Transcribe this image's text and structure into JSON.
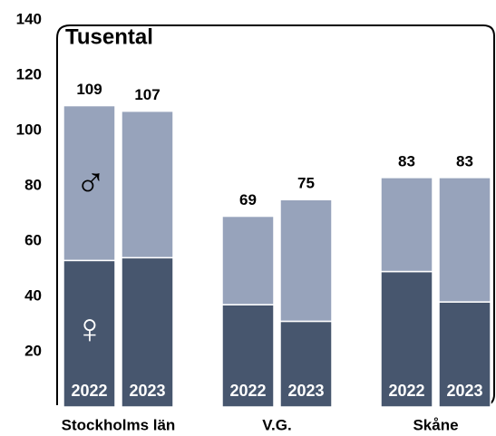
{
  "chart_data": {
    "type": "bar",
    "stacked": true,
    "title": "Tusental",
    "groups": [
      "Stockholms län",
      "V.G.",
      "Skåne"
    ],
    "categories": [
      "2022",
      "2023",
      "2022",
      "2023",
      "2022",
      "2023"
    ],
    "series": [
      {
        "name": "♀",
        "color": "#47566e",
        "values": [
          53,
          54,
          37,
          31,
          49,
          38
        ]
      },
      {
        "name": "♂",
        "color": "#97a3bb",
        "values": [
          56,
          53,
          32,
          44,
          34,
          45
        ]
      }
    ],
    "totals": [
      109,
      107,
      69,
      75,
      83,
      83
    ],
    "ylim": [
      0,
      140
    ],
    "yticks": [
      20,
      40,
      60,
      80,
      100,
      120,
      140
    ],
    "grid": false
  }
}
